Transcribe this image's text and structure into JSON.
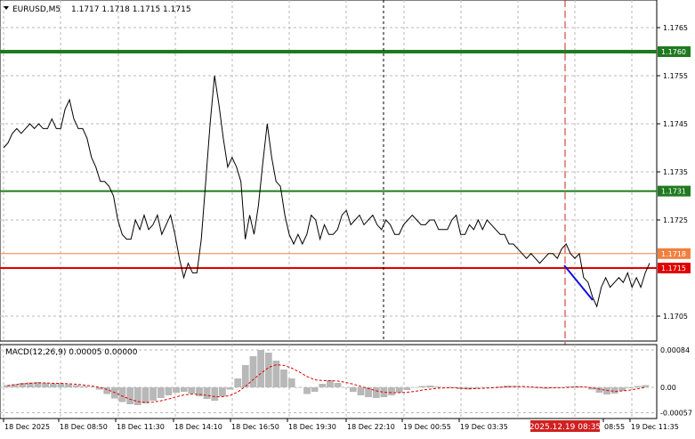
{
  "header": {
    "symbol_label": "EURUSD,M5",
    "ohlc": "1.1717 1.1718 1.1715 1.1715"
  },
  "price_axis": {
    "ticks": [
      "1.1765",
      "1.1755",
      "1.1745",
      "1.1735",
      "1.1725",
      "1.1705"
    ],
    "tick_values": [
      1.1765,
      1.1755,
      1.1745,
      1.1735,
      1.1725,
      1.1705
    ]
  },
  "levels": [
    {
      "name": "upper-resistance",
      "value": 1.176,
      "label": "1.1760",
      "color": "#1f7a1f"
    },
    {
      "name": "middle-level",
      "value": 1.1731,
      "label": "1.1731",
      "color": "#1f7a1f"
    },
    {
      "name": "bid-price",
      "value": 1.1718,
      "label": "1.1718",
      "color": "#f08040"
    },
    {
      "name": "support-level",
      "value": 1.1715,
      "label": "1.1715",
      "color": "#e00000"
    }
  ],
  "macd": {
    "label": "MACD(12,26,9) 0.00005 0.00000",
    "ticks": [
      "0.00084",
      "0.00",
      "-0.00057"
    ],
    "tick_values": [
      0.00084,
      0.0,
      -0.00057
    ]
  },
  "time_axis": {
    "labels": [
      "18 Dec 2025",
      "18 Dec 08:50",
      "18 Dec 11:30",
      "18 Dec 14:10",
      "18 Dec 16:50",
      "18 Dec 19:30",
      "18 Dec 22:10",
      "19 Dec 00:55",
      "19 Dec 03:35",
      "08:55",
      "19 Dec 11:35"
    ],
    "highlight_label": "2025.12.19 08:35"
  },
  "chart_data": {
    "type": "line",
    "title": "EURUSD,M5",
    "ylim": [
      1.1701,
      1.1769
    ],
    "series": [
      {
        "name": "EURUSD,M5",
        "values": [
          1.174,
          1.1741,
          1.1743,
          1.1744,
          1.1743,
          1.1744,
          1.1745,
          1.1744,
          1.1745,
          1.1744,
          1.1744,
          1.1746,
          1.1744,
          1.1744,
          1.1748,
          1.175,
          1.1746,
          1.1744,
          1.1744,
          1.1742,
          1.1738,
          1.1736,
          1.1733,
          1.1733,
          1.1732,
          1.173,
          1.1725,
          1.1722,
          1.1721,
          1.1721,
          1.1725,
          1.1723,
          1.1726,
          1.1723,
          1.1724,
          1.1726,
          1.1722,
          1.1724,
          1.1726,
          1.1722,
          1.1717,
          1.1713,
          1.1716,
          1.1714,
          1.1714,
          1.1721,
          1.1733,
          1.1745,
          1.1755,
          1.1749,
          1.1742,
          1.1736,
          1.1738,
          1.1736,
          1.1733,
          1.1721,
          1.1726,
          1.1722,
          1.1728,
          1.1737,
          1.1745,
          1.1738,
          1.1733,
          1.1732,
          1.1726,
          1.1722,
          1.172,
          1.1722,
          1.172,
          1.1722,
          1.1726,
          1.1725,
          1.1721,
          1.1724,
          1.1722,
          1.1722,
          1.1723,
          1.1726,
          1.1727,
          1.1724,
          1.1725,
          1.1726,
          1.1724,
          1.1725,
          1.1726,
          1.1724,
          1.1723,
          1.1725,
          1.1724,
          1.1722,
          1.1722,
          1.1724,
          1.1725,
          1.1726,
          1.1725,
          1.1724,
          1.1724,
          1.1725,
          1.1725,
          1.1723,
          1.1723,
          1.1723,
          1.1725,
          1.1726,
          1.1722,
          1.1722,
          1.1724,
          1.1723,
          1.1725,
          1.1723,
          1.1725,
          1.1724,
          1.1723,
          1.1722,
          1.1722,
          1.172,
          1.172,
          1.1719,
          1.1718,
          1.1717,
          1.1718,
          1.1717,
          1.1716,
          1.1717,
          1.1718,
          1.1718,
          1.1717,
          1.1719,
          1.172,
          1.1718,
          1.1717,
          1.1718,
          1.1713,
          1.1712,
          1.1709,
          1.1707,
          1.1711,
          1.1713,
          1.1711,
          1.1712,
          1.1713,
          1.1712,
          1.1714,
          1.1711,
          1.1713,
          1.1711,
          1.1714,
          1.1716
        ],
        "color": "#000000"
      },
      {
        "name": "MACD",
        "values": [
          5e-05,
          7e-05,
          0.0001,
          0.00011,
          0.00012,
          0.0001,
          9e-05,
          9e-05,
          7e-05,
          5e-05,
          3e-05,
          1e-05,
          -5e-05,
          -0.00015,
          -0.00025,
          -0.00033,
          -0.00038,
          -0.0004,
          -0.00036,
          -0.0003,
          -0.00024,
          -0.00018,
          -0.00012,
          -0.0001,
          -0.00014,
          -0.0002,
          -0.00026,
          -0.0003,
          -0.0002,
          -5e-05,
          0.0002,
          0.0005,
          0.0007,
          0.00084,
          0.00078,
          0.0006,
          0.0004,
          0.0002,
          0.0,
          -0.00015,
          -0.0001,
          8e-05,
          0.00016,
          0.0001,
          0.0,
          -0.0001,
          -0.00018,
          -0.00022,
          -0.00024,
          -0.00022,
          -0.00018,
          -0.00012,
          -6e-05,
          0.0,
          3e-05,
          4e-05,
          2e-05,
          0.0,
          -2e-05,
          -4e-05,
          -5e-05,
          -3e-05,
          -1e-05,
          0.0,
          2e-05,
          4e-05,
          3e-05,
          1e-05,
          0.0,
          -2e-05,
          -3e-05,
          -2e-05,
          0.0,
          2e-05,
          3e-05,
          1e-05,
          -5e-05,
          -0.00012,
          -0.00016,
          -0.00014,
          -8e-05,
          -2e-05,
          3e-05,
          5e-05
        ],
        "color": "#b0b0b0"
      },
      {
        "name": "Signal",
        "values": [
          4e-05,
          6e-05,
          8e-05,
          9e-05,
          0.0001,
          0.0001,
          9e-05,
          9e-05,
          8e-05,
          7e-05,
          5e-05,
          3e-05,
          0.0,
          -5e-05,
          -0.00012,
          -0.0002,
          -0.00027,
          -0.00032,
          -0.00034,
          -0.00033,
          -0.0003,
          -0.00026,
          -0.00021,
          -0.00017,
          -0.00015,
          -0.00016,
          -0.00018,
          -0.00021,
          -0.00021,
          -0.00018,
          -0.0001,
          3e-05,
          0.00018,
          0.00032,
          0.00045,
          0.00051,
          0.00049,
          0.00043,
          0.00034,
          0.00024,
          0.00017,
          0.00015,
          0.00015,
          0.00014,
          0.00011,
          7e-05,
          2e-05,
          -3e-05,
          -8e-05,
          -0.00011,
          -0.00012,
          -0.00012,
          -0.00011,
          -9e-05,
          -6e-05,
          -4e-05,
          -2e-05,
          -1e-05,
          -1e-05,
          -2e-05,
          -3e-05,
          -3e-05,
          -2e-05,
          -1e-05,
          0.0,
          1e-05,
          2e-05,
          2e-05,
          1e-05,
          0.0,
          -1e-05,
          -1e-05,
          -1e-05,
          0.0,
          1e-05,
          1e-05,
          -1e-05,
          -4e-05,
          -7e-05,
          -9e-05,
          -8e-05,
          -6e-05,
          -3e-05,
          0.0
        ],
        "color": "#e00000"
      }
    ]
  }
}
